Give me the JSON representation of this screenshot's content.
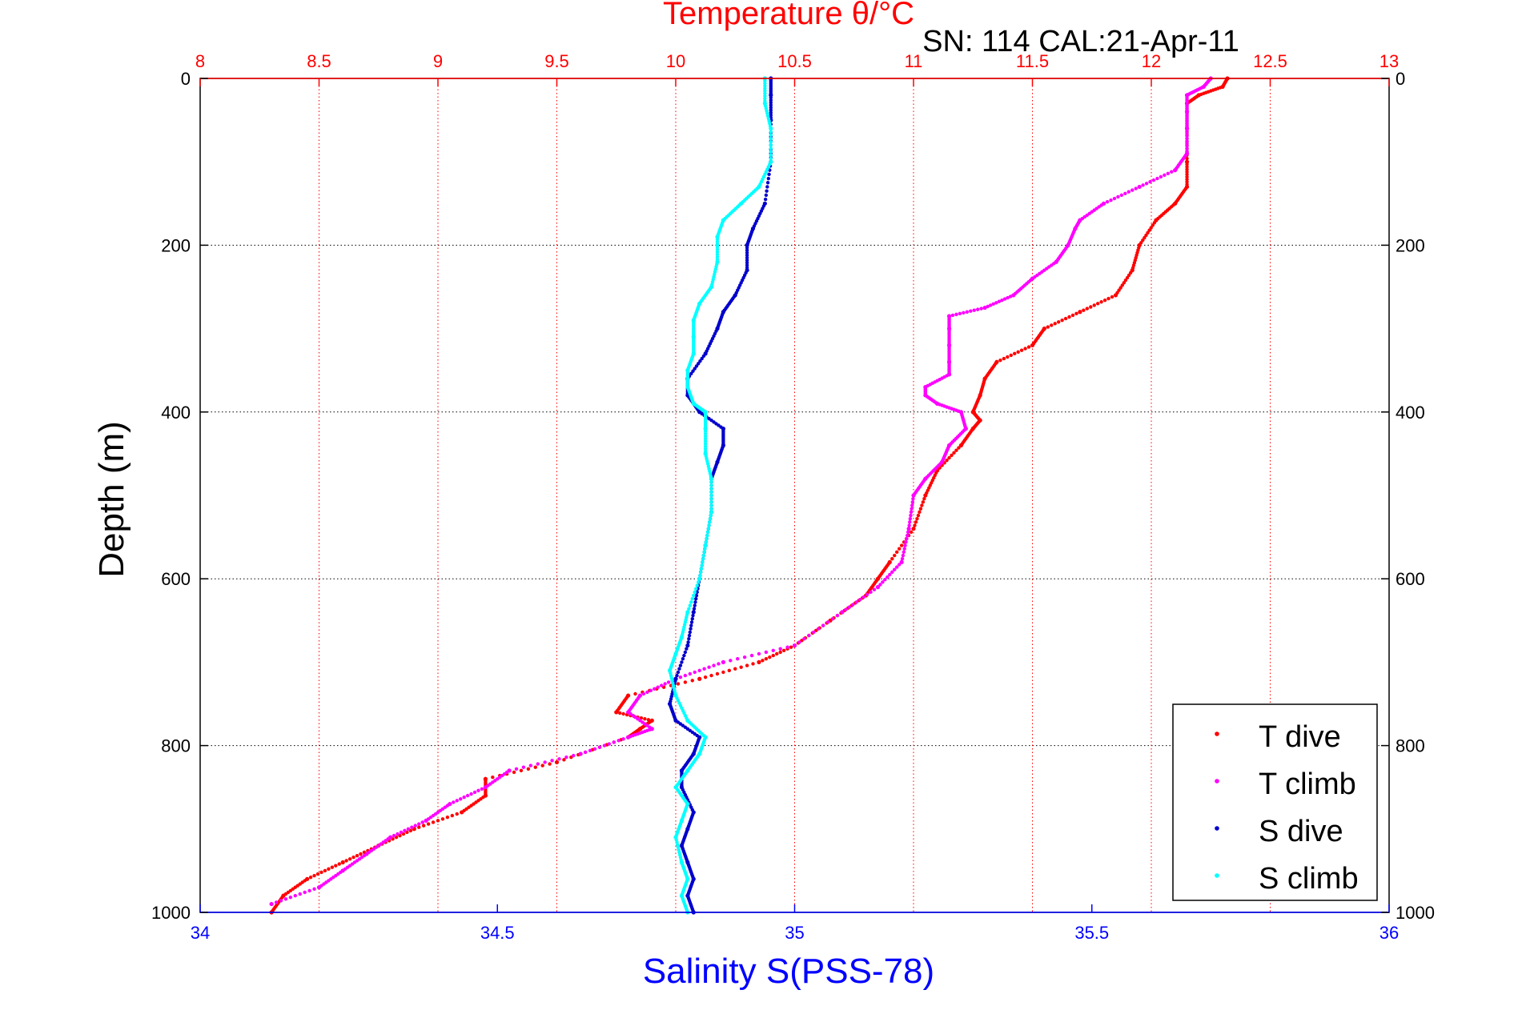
{
  "chart_data": {
    "type": "scatter",
    "title": "Temperature θ/°C",
    "subtitle": "SN: 114  CAL:21-Apr-11",
    "ylabel": "Depth (m)",
    "xlabel": "Salinity S(PSS-78)",
    "y_range": [
      0,
      1000
    ],
    "y_reversed": true,
    "y_ticks": [
      0,
      200,
      400,
      600,
      800,
      1000
    ],
    "temp_range": [
      8,
      13
    ],
    "temp_ticks": [
      8,
      8.5,
      9,
      9.5,
      10,
      10.5,
      11,
      11.5,
      12,
      12.5,
      13
    ],
    "salinity_range": [
      34,
      36
    ],
    "salinity_ticks": [
      34,
      34.5,
      35,
      35.5,
      36
    ],
    "grid": true,
    "legend_position": "bottom-right",
    "colors": {
      "temperature_axis": "#ff0000",
      "salinity_axis": "#0000ff",
      "T dive": "#ff0000",
      "T climb": "#ff00ff",
      "S dive": "#0000cc",
      "S climb": "#00ffff"
    },
    "series": [
      {
        "name": "T dive",
        "axis": "temperature",
        "points": [
          [
            0,
            12.32
          ],
          [
            10,
            12.3
          ],
          [
            20,
            12.2
          ],
          [
            30,
            12.15
          ],
          [
            60,
            12.15
          ],
          [
            100,
            12.15
          ],
          [
            130,
            12.15
          ],
          [
            150,
            12.1
          ],
          [
            170,
            12.02
          ],
          [
            200,
            11.95
          ],
          [
            230,
            11.92
          ],
          [
            260,
            11.85
          ],
          [
            280,
            11.7
          ],
          [
            300,
            11.55
          ],
          [
            320,
            11.5
          ],
          [
            340,
            11.35
          ],
          [
            360,
            11.3
          ],
          [
            380,
            11.28
          ],
          [
            400,
            11.25
          ],
          [
            410,
            11.28
          ],
          [
            420,
            11.25
          ],
          [
            440,
            11.2
          ],
          [
            470,
            11.1
          ],
          [
            500,
            11.05
          ],
          [
            540,
            11.0
          ],
          [
            580,
            10.9
          ],
          [
            600,
            10.85
          ],
          [
            620,
            10.8
          ],
          [
            650,
            10.65
          ],
          [
            680,
            10.5
          ],
          [
            700,
            10.35
          ],
          [
            720,
            10.1
          ],
          [
            740,
            9.8
          ],
          [
            760,
            9.75
          ],
          [
            770,
            9.9
          ],
          [
            780,
            9.85
          ],
          [
            790,
            9.8
          ],
          [
            820,
            9.5
          ],
          [
            840,
            9.2
          ],
          [
            860,
            9.2
          ],
          [
            880,
            9.1
          ],
          [
            900,
            8.9
          ],
          [
            920,
            8.75
          ],
          [
            940,
            8.6
          ],
          [
            960,
            8.45
          ],
          [
            980,
            8.35
          ],
          [
            1000,
            8.3
          ]
        ]
      },
      {
        "name": "T climb",
        "axis": "temperature",
        "points": [
          [
            0,
            12.25
          ],
          [
            10,
            12.22
          ],
          [
            20,
            12.15
          ],
          [
            40,
            12.15
          ],
          [
            60,
            12.15
          ],
          [
            90,
            12.15
          ],
          [
            110,
            12.1
          ],
          [
            130,
            11.95
          ],
          [
            150,
            11.8
          ],
          [
            170,
            11.7
          ],
          [
            180,
            11.68
          ],
          [
            200,
            11.65
          ],
          [
            220,
            11.6
          ],
          [
            240,
            11.5
          ],
          [
            260,
            11.42
          ],
          [
            275,
            11.3
          ],
          [
            285,
            11.15
          ],
          [
            300,
            11.15
          ],
          [
            320,
            11.15
          ],
          [
            340,
            11.15
          ],
          [
            355,
            11.15
          ],
          [
            370,
            11.05
          ],
          [
            380,
            11.05
          ],
          [
            390,
            11.1
          ],
          [
            400,
            11.2
          ],
          [
            420,
            11.22
          ],
          [
            440,
            11.15
          ],
          [
            460,
            11.12
          ],
          [
            480,
            11.05
          ],
          [
            500,
            11.0
          ],
          [
            540,
            10.98
          ],
          [
            580,
            10.95
          ],
          [
            610,
            10.85
          ],
          [
            640,
            10.7
          ],
          [
            680,
            10.5
          ],
          [
            700,
            10.2
          ],
          [
            720,
            10.0
          ],
          [
            740,
            9.85
          ],
          [
            760,
            9.8
          ],
          [
            780,
            9.9
          ],
          [
            790,
            9.8
          ],
          [
            810,
            9.6
          ],
          [
            830,
            9.3
          ],
          [
            850,
            9.2
          ],
          [
            870,
            9.05
          ],
          [
            890,
            8.95
          ],
          [
            910,
            8.8
          ],
          [
            930,
            8.7
          ],
          [
            950,
            8.6
          ],
          [
            970,
            8.5
          ],
          [
            990,
            8.3
          ]
        ]
      },
      {
        "name": "S dive",
        "axis": "salinity",
        "points": [
          [
            0,
            34.96
          ],
          [
            20,
            34.96
          ],
          [
            50,
            34.96
          ],
          [
            100,
            34.96
          ],
          [
            150,
            34.95
          ],
          [
            180,
            34.93
          ],
          [
            200,
            34.92
          ],
          [
            230,
            34.92
          ],
          [
            260,
            34.9
          ],
          [
            280,
            34.88
          ],
          [
            300,
            34.87
          ],
          [
            330,
            34.85
          ],
          [
            360,
            34.82
          ],
          [
            380,
            34.82
          ],
          [
            400,
            34.84
          ],
          [
            420,
            34.88
          ],
          [
            440,
            34.88
          ],
          [
            460,
            34.87
          ],
          [
            480,
            34.86
          ],
          [
            520,
            34.86
          ],
          [
            560,
            34.85
          ],
          [
            600,
            34.84
          ],
          [
            640,
            34.83
          ],
          [
            680,
            34.82
          ],
          [
            720,
            34.8
          ],
          [
            750,
            34.79
          ],
          [
            770,
            34.8
          ],
          [
            790,
            34.84
          ],
          [
            810,
            34.83
          ],
          [
            830,
            34.81
          ],
          [
            850,
            34.81
          ],
          [
            880,
            34.83
          ],
          [
            900,
            34.82
          ],
          [
            920,
            34.81
          ],
          [
            940,
            34.82
          ],
          [
            960,
            34.83
          ],
          [
            980,
            34.82
          ],
          [
            1000,
            34.83
          ]
        ]
      },
      {
        "name": "S climb",
        "axis": "salinity",
        "points": [
          [
            0,
            34.95
          ],
          [
            30,
            34.95
          ],
          [
            60,
            34.96
          ],
          [
            100,
            34.96
          ],
          [
            130,
            34.94
          ],
          [
            150,
            34.91
          ],
          [
            170,
            34.88
          ],
          [
            190,
            34.87
          ],
          [
            220,
            34.87
          ],
          [
            250,
            34.86
          ],
          [
            270,
            34.84
          ],
          [
            290,
            34.83
          ],
          [
            310,
            34.83
          ],
          [
            330,
            34.83
          ],
          [
            350,
            34.82
          ],
          [
            370,
            34.82
          ],
          [
            390,
            34.83
          ],
          [
            400,
            34.85
          ],
          [
            420,
            34.85
          ],
          [
            450,
            34.85
          ],
          [
            480,
            34.86
          ],
          [
            520,
            34.86
          ],
          [
            560,
            34.85
          ],
          [
            600,
            34.84
          ],
          [
            640,
            34.82
          ],
          [
            670,
            34.81
          ],
          [
            690,
            34.8
          ],
          [
            710,
            34.79
          ],
          [
            740,
            34.8
          ],
          [
            770,
            34.82
          ],
          [
            790,
            34.85
          ],
          [
            810,
            34.84
          ],
          [
            830,
            34.82
          ],
          [
            850,
            34.8
          ],
          [
            870,
            34.82
          ],
          [
            890,
            34.81
          ],
          [
            910,
            34.8
          ],
          [
            940,
            34.81
          ],
          [
            960,
            34.82
          ],
          [
            980,
            34.81
          ],
          [
            1000,
            34.82
          ]
        ]
      }
    ]
  }
}
